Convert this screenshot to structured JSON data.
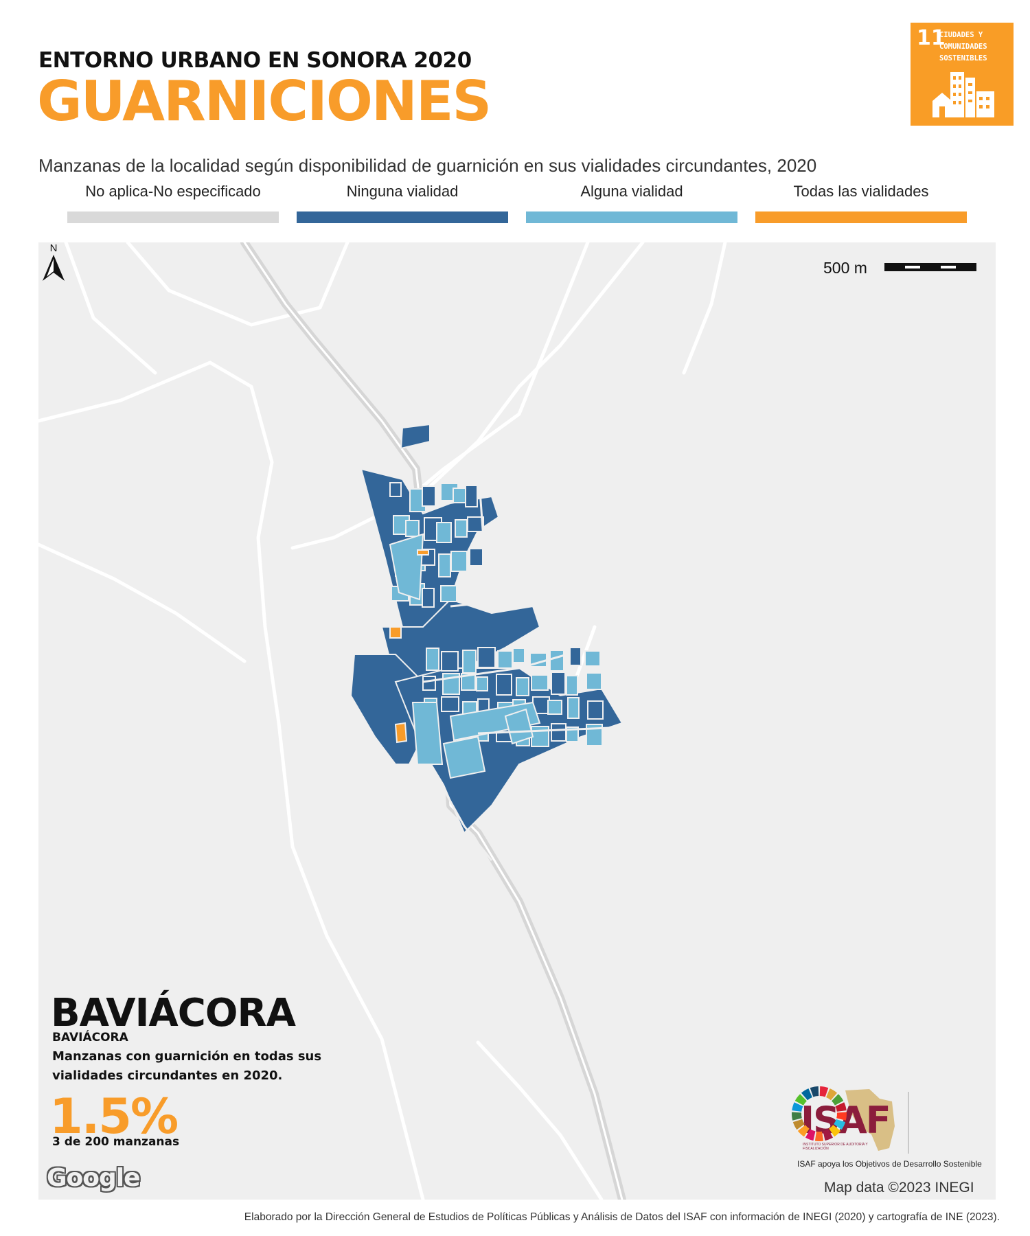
{
  "header": {
    "kicker": "ENTORNO URBANO EN SONORA 2020",
    "title": "GUARNICIONES",
    "subtitle": "Manzanas de la localidad según disponibilidad de guarnición en sus vialidades circundantes, 2020"
  },
  "sdg_badge": {
    "number": "11",
    "text": "CIUDADES Y\nCOMUNIDADES\nSOSTENIBLES",
    "color": "#f99d26",
    "icon": "city-buildings-icon"
  },
  "legend": [
    {
      "label": "No aplica-No especificado",
      "color": "#d9d9d9"
    },
    {
      "label": "Ninguna vialidad",
      "color": "#336699"
    },
    {
      "label": "Alguna vialidad",
      "color": "#70b8d6"
    },
    {
      "label": "Todas las vialidades",
      "color": "#f89c2a"
    }
  ],
  "map": {
    "scale_label": "500 m",
    "north_label": "N",
    "google_logo": "Google",
    "attribution": "Map data ©2023 INEGI"
  },
  "place": {
    "municipality": "BAVIÁCORA",
    "locality": "BAVIÁCORA",
    "description": "Manzanas con guarnición en todas sus vialidades circundantes en 2020.",
    "percentage": "1.5%",
    "count_text": "3 de 200 manzanas",
    "share_all_streets": 0.015,
    "blocks_all_streets": 3,
    "blocks_total": 200
  },
  "logos": {
    "isaf_text": "ISAF",
    "isaf_small": "INSTITUTO SUPERIOR DE AUDITORÍA Y FISCALIZACIÓN",
    "isaf_caption": "ISAF apoya los Objetivos de Desarrollo Sostenible"
  },
  "footer": "Elaborado por la Dirección General de Estudios de Políticas Públicas y Análisis de Datos del ISAF con información de INEGI (2020) y cartografía de INE (2023)."
}
